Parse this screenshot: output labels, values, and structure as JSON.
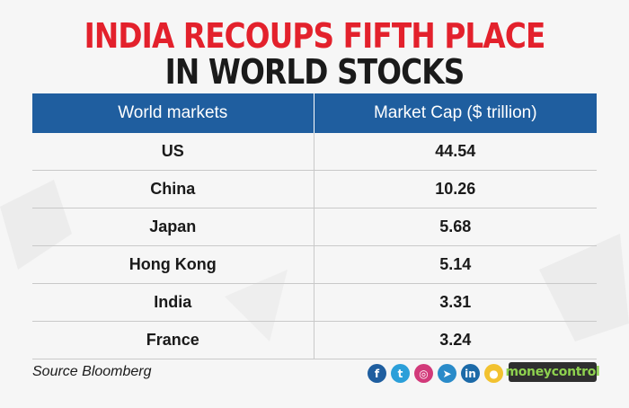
{
  "title": {
    "line1": "INDIA RECOUPS FIFTH PLACE",
    "line2": "IN WORLD STOCKS",
    "line1_color": "#e3212c",
    "line2_color": "#1a1a1a"
  },
  "chart_data": {
    "type": "table",
    "title": "INDIA RECOUPS FIFTH PLACE IN WORLD STOCKS",
    "columns": [
      "World markets",
      "Market Cap ($ trillion)"
    ],
    "rows": [
      [
        "US",
        "44.54"
      ],
      [
        "China",
        "10.26"
      ],
      [
        "Japan",
        "5.68"
      ],
      [
        "Hong Kong",
        "5.14"
      ],
      [
        "India",
        "3.31"
      ],
      [
        "France",
        "3.24"
      ]
    ],
    "header_color": "#1f5e9f"
  },
  "footer": {
    "source": "Source Bloomberg",
    "brand": "moneycontrol",
    "brand_color": "#8ed14f",
    "social_icons": [
      {
        "name": "facebook-icon",
        "glyph": "f",
        "color": "#1f5e9f"
      },
      {
        "name": "twitter-icon",
        "glyph": "t",
        "color": "#2b9fd9"
      },
      {
        "name": "instagram-icon",
        "glyph": "◎",
        "color": "#d23a7a"
      },
      {
        "name": "telegram-icon",
        "glyph": "➤",
        "color": "#2a8bc9"
      },
      {
        "name": "linkedin-icon",
        "glyph": "in",
        "color": "#1c6aa8"
      },
      {
        "name": "koo-icon",
        "glyph": "●",
        "color": "#f2c230"
      }
    ]
  }
}
